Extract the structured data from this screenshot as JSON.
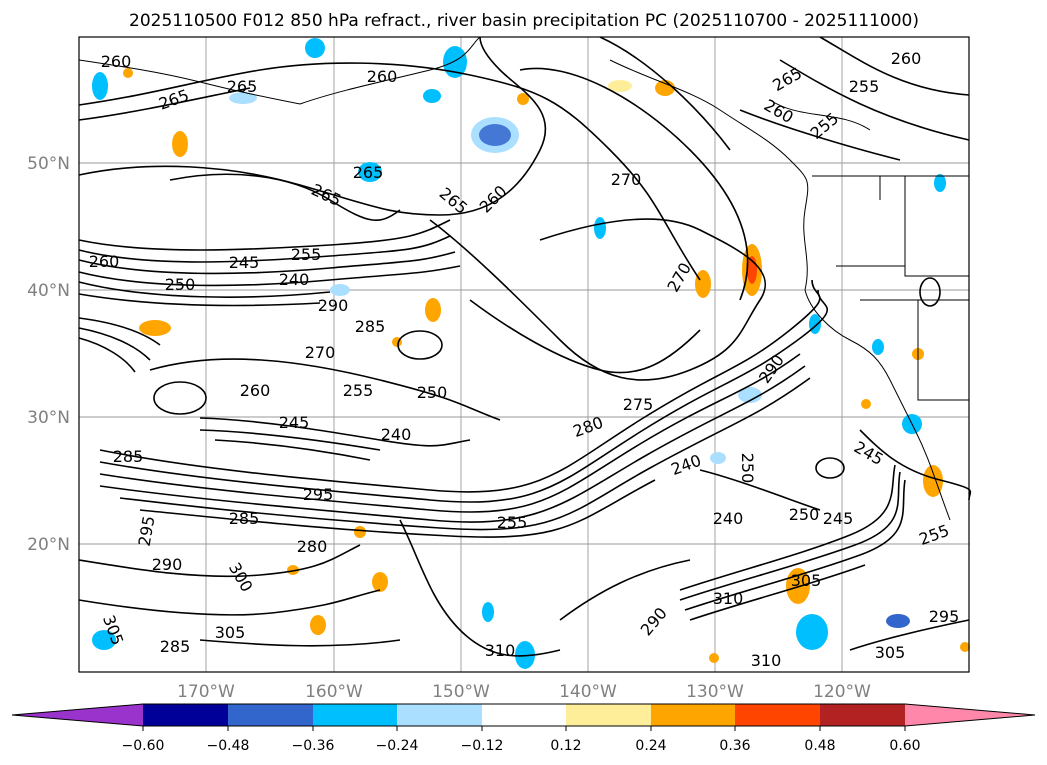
{
  "title": "2025110500 F012 850 hPa refract., river basin precipitation PC (2025110700 - 2025111000)",
  "map": {
    "lat_labels": [
      "50°N",
      "40°N",
      "30°N",
      "20°N"
    ],
    "lon_labels": [
      "170°W",
      "160°W",
      "150°W",
      "140°W",
      "130°W",
      "120°W"
    ],
    "contour_labels": [
      "260",
      "265",
      "265",
      "260",
      "265",
      "265",
      "260",
      "265",
      "270",
      "255",
      "260",
      "255",
      "265",
      "260",
      "245",
      "255",
      "240",
      "250",
      "260",
      "290",
      "285",
      "270",
      "260",
      "255",
      "250",
      "245",
      "240",
      "275",
      "280",
      "285",
      "295",
      "285",
      "280",
      "290",
      "295",
      "300",
      "305",
      "310",
      "285",
      "305",
      "290",
      "310",
      "240",
      "250",
      "245",
      "270",
      "255",
      "290",
      "250",
      "240",
      "305",
      "310",
      "305",
      "295",
      "245",
      "255"
    ]
  },
  "colorbar": {
    "tick_labels": [
      "−0.60",
      "−0.48",
      "−0.36",
      "−0.24",
      "−0.12",
      "0.12",
      "0.24",
      "0.36",
      "0.48",
      "0.60"
    ],
    "colors": [
      "#9933cc",
      "#000099",
      "#3366cc",
      "#00bfff",
      "#aadfff",
      "#ffffff",
      "#ffee99",
      "#ffa500",
      "#ff4500",
      "#b22222",
      "#ff88aa"
    ]
  }
}
